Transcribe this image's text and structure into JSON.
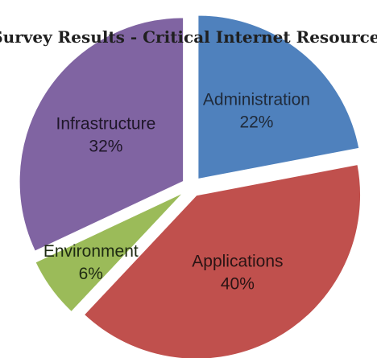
{
  "chart_data": {
    "type": "pie",
    "title": "Survey Results - Critical Internet Resources",
    "slices": [
      {
        "label": "Administration",
        "value": 22,
        "value_label": "22%",
        "color": "#4f81bd",
        "label_color": "#1f2a3a"
      },
      {
        "label": "Applications",
        "value": 40,
        "value_label": "40%",
        "color": "#c0504d",
        "label_color": "#2a1414"
      },
      {
        "label": "Environment",
        "value": 6,
        "value_label": "6%",
        "color": "#9bbb59",
        "label_color": "#1e2a12"
      },
      {
        "label": "Infrastructure",
        "value": 32,
        "value_label": "32%",
        "color": "#8064a2",
        "label_color": "#1e1628"
      }
    ],
    "start_angle": "12 o'clock",
    "direction": "clockwise",
    "exploded": true,
    "legend": "none"
  }
}
